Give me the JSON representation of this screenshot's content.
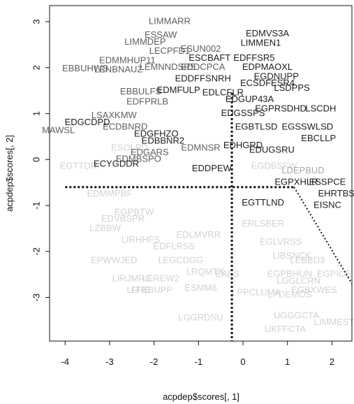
{
  "chart_data": {
    "type": "scatter",
    "xlabel": "acpdep$scores[, 1]",
    "ylabel": "acpdep$scores[, 2]",
    "xlim": [
      -4.35,
      2.45
    ],
    "ylim": [
      -3.95,
      3.35
    ],
    "x_ticks": [
      -4,
      -3,
      -2,
      -1,
      0,
      1,
      2
    ],
    "y_ticks": [
      -3,
      -2,
      -1,
      0,
      1,
      2,
      3
    ],
    "colors": {
      "dark": "#1d1d1d",
      "mid": "#5f5f5f",
      "light": "#d2d2d2",
      "medium_light": "#a9a9a9"
    },
    "reference_lines": {
      "vertical_x": -0.25,
      "horizontal_y": -0.6,
      "diagonal": [
        [
          1.15,
          -0.6
        ],
        [
          2.45,
          -2.7
        ]
      ]
    },
    "points": [
      {
        "x": -1.65,
        "y": 3.0,
        "label": "LIMMARR",
        "shade": "mid"
      },
      {
        "x": -1.85,
        "y": 2.7,
        "label": "ESSAW",
        "shade": "mid"
      },
      {
        "x": -0.95,
        "y": 2.4,
        "label": "ESUN002",
        "shade": "mid"
      },
      {
        "x": 0.55,
        "y": 2.73,
        "label": "EDMVS3A",
        "shade": "dark"
      },
      {
        "x": 0.4,
        "y": 2.53,
        "label": "LIMMEN1",
        "shade": "dark"
      },
      {
        "x": -2.2,
        "y": 2.55,
        "label": "LIMMDEP",
        "shade": "mid"
      },
      {
        "x": -1.65,
        "y": 2.35,
        "label": "LECPFD1",
        "shade": "mid"
      },
      {
        "x": -0.75,
        "y": 2.2,
        "label": "ESCBAFT",
        "shade": "dark"
      },
      {
        "x": 0.25,
        "y": 2.2,
        "label": "EDFFSR5",
        "shade": "dark"
      },
      {
        "x": -3.55,
        "y": 1.97,
        "label": "EBBUHWS",
        "shade": "mid"
      },
      {
        "x": -2.6,
        "y": 2.15,
        "label": "EDMMHUP11",
        "shade": "mid"
      },
      {
        "x": -2.8,
        "y": 1.95,
        "label": "LENBNAUZ",
        "shade": "mid"
      },
      {
        "x": -1.7,
        "y": 2.0,
        "label": "LEMNNDSR5",
        "shade": "mid"
      },
      {
        "x": -0.9,
        "y": 2.0,
        "label": "EDDCPCA",
        "shade": "mid"
      },
      {
        "x": 0.55,
        "y": 2.0,
        "label": "EDPMAOXL",
        "shade": "dark"
      },
      {
        "x": 0.75,
        "y": 1.8,
        "label": "EGDNUPP",
        "shade": "dark"
      },
      {
        "x": -0.9,
        "y": 1.75,
        "label": "EDDFFSNRH",
        "shade": "dark"
      },
      {
        "x": 0.55,
        "y": 1.65,
        "label": "ECSDFESR4",
        "shade": "dark"
      },
      {
        "x": -2.3,
        "y": 1.47,
        "label": "EBBULFS",
        "shade": "mid"
      },
      {
        "x": -1.45,
        "y": 1.5,
        "label": "EDMFULP",
        "shade": "dark"
      },
      {
        "x": -0.45,
        "y": 1.45,
        "label": "EDLCFLR",
        "shade": "dark"
      },
      {
        "x": 1.1,
        "y": 1.55,
        "label": "LSDPPS",
        "shade": "dark"
      },
      {
        "x": -2.15,
        "y": 1.25,
        "label": "EDFPRLB",
        "shade": "mid"
      },
      {
        "x": 0.15,
        "y": 1.3,
        "label": "EDGUP43A",
        "shade": "dark"
      },
      {
        "x": -2.9,
        "y": 0.95,
        "label": "LSAXKMW",
        "shade": "mid"
      },
      {
        "x": -3.5,
        "y": 0.8,
        "label": "EDGCDPD",
        "shade": "dark"
      },
      {
        "x": 0.0,
        "y": 1.0,
        "label": "EDGSSPS",
        "shade": "dark"
      },
      {
        "x": 0.85,
        "y": 1.1,
        "label": "EGPRSDHD",
        "shade": "dark"
      },
      {
        "x": 1.75,
        "y": 1.1,
        "label": "LSCDH",
        "shade": "dark"
      },
      {
        "x": -4.15,
        "y": 0.63,
        "label": "MAWSL",
        "shade": "mid"
      },
      {
        "x": -2.65,
        "y": 0.7,
        "label": "ECDBNRD",
        "shade": "mid"
      },
      {
        "x": -1.95,
        "y": 0.55,
        "label": "EDGFHZO",
        "shade": "dark"
      },
      {
        "x": 0.3,
        "y": 0.7,
        "label": "EGBTLSD",
        "shade": "dark"
      },
      {
        "x": 1.45,
        "y": 0.7,
        "label": "EGSSWLSD",
        "shade": "dark"
      },
      {
        "x": -1.8,
        "y": 0.4,
        "label": "EDBBNR2",
        "shade": "dark"
      },
      {
        "x": 1.7,
        "y": 0.45,
        "label": "EBCLLP",
        "shade": "dark"
      },
      {
        "x": -2.55,
        "y": 0.25,
        "label": "ESOLPD",
        "shade": "light"
      },
      {
        "x": -2.1,
        "y": 0.15,
        "label": "EDGARS",
        "shade": "mid"
      },
      {
        "x": -0.95,
        "y": 0.25,
        "label": "EDMNSR",
        "shade": "mid"
      },
      {
        "x": 0.0,
        "y": 0.3,
        "label": "EDHGRD",
        "shade": "dark"
      },
      {
        "x": 0.65,
        "y": 0.2,
        "label": "EDUGSRU",
        "shade": "dark"
      },
      {
        "x": -2.35,
        "y": 0.0,
        "label": "EDMBSPO",
        "shade": "mid"
      },
      {
        "x": -2.85,
        "y": -0.1,
        "label": "ECYGDDR",
        "shade": "dark"
      },
      {
        "x": -3.7,
        "y": -0.15,
        "label": "EGTTDR",
        "shade": "light"
      },
      {
        "x": -0.7,
        "y": -0.2,
        "label": "EDDPEW",
        "shade": "dark"
      },
      {
        "x": 1.35,
        "y": -0.25,
        "label": "LDEPBUD",
        "shade": "medium_light"
      },
      {
        "x": 0.7,
        "y": -0.15,
        "label": "EGDBSFW",
        "shade": "light"
      },
      {
        "x": 1.2,
        "y": -0.5,
        "label": "EGPXHLR",
        "shade": "dark"
      },
      {
        "x": 1.9,
        "y": -0.5,
        "label": "ESSPCE",
        "shade": "dark"
      },
      {
        "x": -3.0,
        "y": -0.75,
        "label": "EDMMPBF",
        "shade": "light"
      },
      {
        "x": 2.1,
        "y": -0.75,
        "label": "EHRTBS",
        "shade": "dark"
      },
      {
        "x": 0.45,
        "y": -0.95,
        "label": "EGTTLND",
        "shade": "dark"
      },
      {
        "x": 1.9,
        "y": -1.0,
        "label": "EISNC",
        "shade": "dark"
      },
      {
        "x": -2.45,
        "y": -1.15,
        "label": "EGPBTW",
        "shade": "light"
      },
      {
        "x": -2.7,
        "y": -1.3,
        "label": "EDVBSPR",
        "shade": "light"
      },
      {
        "x": -3.1,
        "y": -1.5,
        "label": "LZBBW",
        "shade": "light"
      },
      {
        "x": 0.45,
        "y": -1.4,
        "label": "ERLSBER",
        "shade": "light"
      },
      {
        "x": -2.3,
        "y": -1.75,
        "label": "LIRHHFS",
        "shade": "light"
      },
      {
        "x": -1.0,
        "y": -1.65,
        "label": "EDLMVRR",
        "shade": "light"
      },
      {
        "x": 0.85,
        "y": -1.8,
        "label": "EGLVRSS",
        "shade": "light"
      },
      {
        "x": -1.55,
        "y": -1.9,
        "label": "EDFLRSS",
        "shade": "light"
      },
      {
        "x": 1.1,
        "y": -2.1,
        "label": "LIBSNCK",
        "shade": "light"
      },
      {
        "x": 1.45,
        "y": -2.2,
        "label": "LEBBD3",
        "shade": "light"
      },
      {
        "x": -2.9,
        "y": -2.2,
        "label": "EPWWJED",
        "shade": "light"
      },
      {
        "x": -1.4,
        "y": -2.2,
        "label": "LEGCDGG",
        "shade": "light"
      },
      {
        "x": 1.05,
        "y": -2.5,
        "label": "EGPBHUN",
        "shade": "light"
      },
      {
        "x": 2.05,
        "y": -2.5,
        "label": "EGPICE",
        "shade": "light"
      },
      {
        "x": -2.5,
        "y": -2.6,
        "label": "LIRJMRC",
        "shade": "light"
      },
      {
        "x": -1.85,
        "y": -2.6,
        "label": "LEREW2",
        "shade": "light"
      },
      {
        "x": -0.85,
        "y": -2.45,
        "label": "LRQMTX",
        "shade": "light"
      },
      {
        "x": -0.35,
        "y": -2.5,
        "label": "EAES",
        "shade": "light"
      },
      {
        "x": 1.25,
        "y": -2.65,
        "label": "LGGLCRN",
        "shade": "light"
      },
      {
        "x": -2.35,
        "y": -2.85,
        "label": "LFRC",
        "shade": "light"
      },
      {
        "x": -2.05,
        "y": -2.85,
        "label": "LFBBUPP",
        "shade": "light"
      },
      {
        "x": -0.95,
        "y": -2.8,
        "label": "ESMM6",
        "shade": "light"
      },
      {
        "x": 1.6,
        "y": -2.85,
        "label": "EGBXWES",
        "shade": "light"
      },
      {
        "x": 0.3,
        "y": -2.9,
        "label": "LPPCLUMA",
        "shade": "light"
      },
      {
        "x": 1.05,
        "y": -2.95,
        "label": "LPDEMOS",
        "shade": "light"
      },
      {
        "x": -0.95,
        "y": -3.45,
        "label": "LGGRDSU",
        "shade": "light"
      },
      {
        "x": 1.2,
        "y": -3.4,
        "label": "UGGGCTA",
        "shade": "light"
      },
      {
        "x": 2.05,
        "y": -3.55,
        "label": "LIMMEST",
        "shade": "light"
      },
      {
        "x": 0.95,
        "y": -3.7,
        "label": "UKFFCTA",
        "shade": "light"
      }
    ]
  }
}
